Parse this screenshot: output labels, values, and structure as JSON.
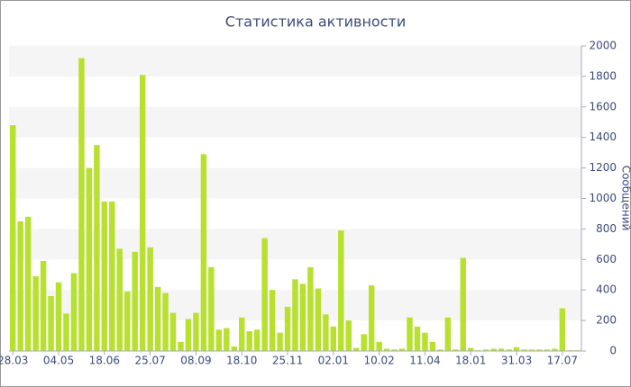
{
  "chart_data": {
    "type": "bar",
    "title": "Статистика активности",
    "y_label": "Сообщений",
    "categories": [
      "28.03",
      null,
      null,
      null,
      null,
      null,
      "04.05",
      null,
      null,
      null,
      null,
      null,
      "18.06",
      null,
      null,
      null,
      null,
      null,
      "25.07",
      null,
      null,
      null,
      null,
      null,
      "08.09",
      null,
      null,
      null,
      null,
      null,
      "18.10",
      null,
      null,
      null,
      null,
      null,
      "25.11",
      null,
      null,
      null,
      null,
      null,
      "02.01",
      null,
      null,
      null,
      null,
      null,
      "10.02",
      null,
      null,
      null,
      null,
      null,
      "11.04",
      null,
      null,
      null,
      null,
      null,
      "18.01",
      null,
      null,
      null,
      null,
      null,
      "31.03",
      null,
      null,
      null,
      null,
      null,
      "17.07",
      null,
      null
    ],
    "values": [
      1480,
      850,
      880,
      490,
      590,
      360,
      450,
      245,
      510,
      1920,
      1200,
      1350,
      980,
      980,
      670,
      390,
      650,
      1810,
      680,
      420,
      380,
      250,
      60,
      210,
      250,
      1290,
      550,
      140,
      150,
      30,
      220,
      130,
      140,
      740,
      400,
      120,
      290,
      470,
      440,
      550,
      410,
      240,
      160,
      790,
      200,
      20,
      110,
      430,
      60,
      15,
      10,
      15,
      220,
      160,
      120,
      60,
      10,
      220,
      10,
      610,
      20,
      5,
      10,
      15,
      15,
      10,
      25,
      10,
      10,
      10,
      10,
      15,
      280,
      5,
      5
    ],
    "color": "#b8e02e",
    "ylim": [
      0,
      2000
    ],
    "yticks": [
      0,
      200,
      400,
      600,
      800,
      1000,
      1200,
      1400,
      1600,
      1800,
      2000
    ],
    "grid": true
  }
}
